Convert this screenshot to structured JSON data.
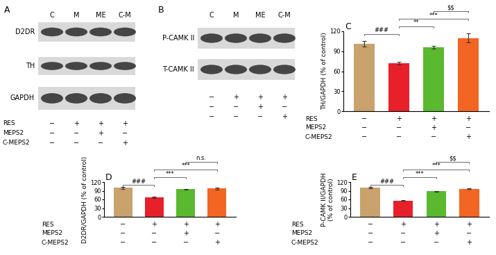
{
  "blots": [
    {
      "panel": "A",
      "lanes": [
        "C",
        "M",
        "ME",
        "C-M"
      ],
      "bands": [
        "D2DR",
        "TH",
        "GAPDH"
      ],
      "treatments": [
        {
          "name": "RES",
          "marks": [
            "−",
            "+",
            "+",
            "+"
          ]
        },
        {
          "name": "MEPS2",
          "marks": [
            "−",
            "−",
            "+",
            "−"
          ]
        },
        {
          "name": "C-MEPS2",
          "marks": [
            "−",
            "−",
            "−",
            "+"
          ]
        }
      ]
    },
    {
      "panel": "B",
      "lanes": [
        "C",
        "M",
        "ME",
        "C-M"
      ],
      "bands": [
        "P-CAMK II",
        "T-CAMK II"
      ],
      "treatments": [
        {
          "marks": [
            "−",
            "+",
            "+",
            "+"
          ]
        },
        {
          "marks": [
            "−",
            "−",
            "+",
            "−"
          ]
        },
        {
          "marks": [
            "−",
            "−",
            "−",
            "+"
          ]
        }
      ]
    }
  ],
  "chart_data": [
    {
      "type": "bar",
      "panel": "C",
      "y_label": "TH/GAPDH (% of control)",
      "values": [
        101,
        72,
        96,
        110
      ],
      "errors": [
        4,
        2,
        2,
        7
      ],
      "colors": [
        "#c9a26e",
        "#e8202a",
        "#5ab92e",
        "#f26522"
      ],
      "ylim": [
        0,
        120
      ],
      "yticks": [
        0,
        30,
        60,
        90,
        120
      ],
      "tick_labels": "y",
      "comparisons": [
        {
          "from": 0,
          "to": 1,
          "label": "###"
        },
        {
          "from": 1,
          "to": 2,
          "label": "**"
        },
        {
          "from": 1,
          "to": 3,
          "label": "***"
        },
        {
          "from": 2,
          "to": 3,
          "label": "$$"
        }
      ],
      "treatments": [
        {
          "name": "RES",
          "marks": [
            "−",
            "+",
            "+",
            "+"
          ]
        },
        {
          "name": "MEPS2",
          "marks": [
            "−",
            "−",
            "+",
            "−"
          ]
        },
        {
          "name": "C-MEPS2",
          "marks": [
            "−",
            "−",
            "−",
            "+"
          ]
        }
      ]
    },
    {
      "type": "bar",
      "panel": "D",
      "y_label": "D2DR/GAPDH (% of control)",
      "values": [
        100,
        67,
        95,
        98
      ],
      "errors": [
        4,
        2,
        2,
        4
      ],
      "colors": [
        "#c9a26e",
        "#e8202a",
        "#5ab92e",
        "#f26522"
      ],
      "ylim": [
        0,
        120
      ],
      "yticks": [
        0,
        30,
        60,
        90,
        120
      ],
      "tick_labels": "y",
      "comparisons": [
        {
          "from": 0,
          "to": 1,
          "label": "###"
        },
        {
          "from": 1,
          "to": 2,
          "label": "***"
        },
        {
          "from": 1,
          "to": 3,
          "label": "***"
        },
        {
          "from": 2,
          "to": 3,
          "label": "n.s."
        }
      ],
      "treatments": [
        {
          "name": "RES",
          "marks": [
            "−",
            "+",
            "+",
            "+"
          ]
        },
        {
          "name": "MEPS2",
          "marks": [
            "−",
            "−",
            "+",
            "−"
          ]
        },
        {
          "name": "C-MEPS2",
          "marks": [
            "−",
            "−",
            "−",
            "+"
          ]
        }
      ]
    },
    {
      "type": "bar",
      "panel": "E",
      "y_label": "P-CAMK II/GAPDH\n(% of control)",
      "values": [
        101,
        56,
        88,
        97
      ],
      "errors": [
        3,
        1,
        1,
        1
      ],
      "colors": [
        "#c9a26e",
        "#e8202a",
        "#5ab92e",
        "#f26522"
      ],
      "ylim": [
        0,
        120
      ],
      "yticks": [
        0,
        30,
        60,
        90,
        120
      ],
      "tick_labels": "y",
      "comparisons": [
        {
          "from": 0,
          "to": 1,
          "label": "###"
        },
        {
          "from": 1,
          "to": 2,
          "label": "***"
        },
        {
          "from": 1,
          "to": 3,
          "label": "***"
        },
        {
          "from": 2,
          "to": 3,
          "label": "$$"
        }
      ],
      "treatments": [
        {
          "name": "RES",
          "marks": [
            "−",
            "+",
            "+",
            "+"
          ]
        },
        {
          "name": "MEPS2",
          "marks": [
            "−",
            "−",
            "+",
            "−"
          ]
        },
        {
          "name": "C-MEPS2",
          "marks": [
            "−",
            "−",
            "−",
            "+"
          ]
        }
      ]
    }
  ]
}
